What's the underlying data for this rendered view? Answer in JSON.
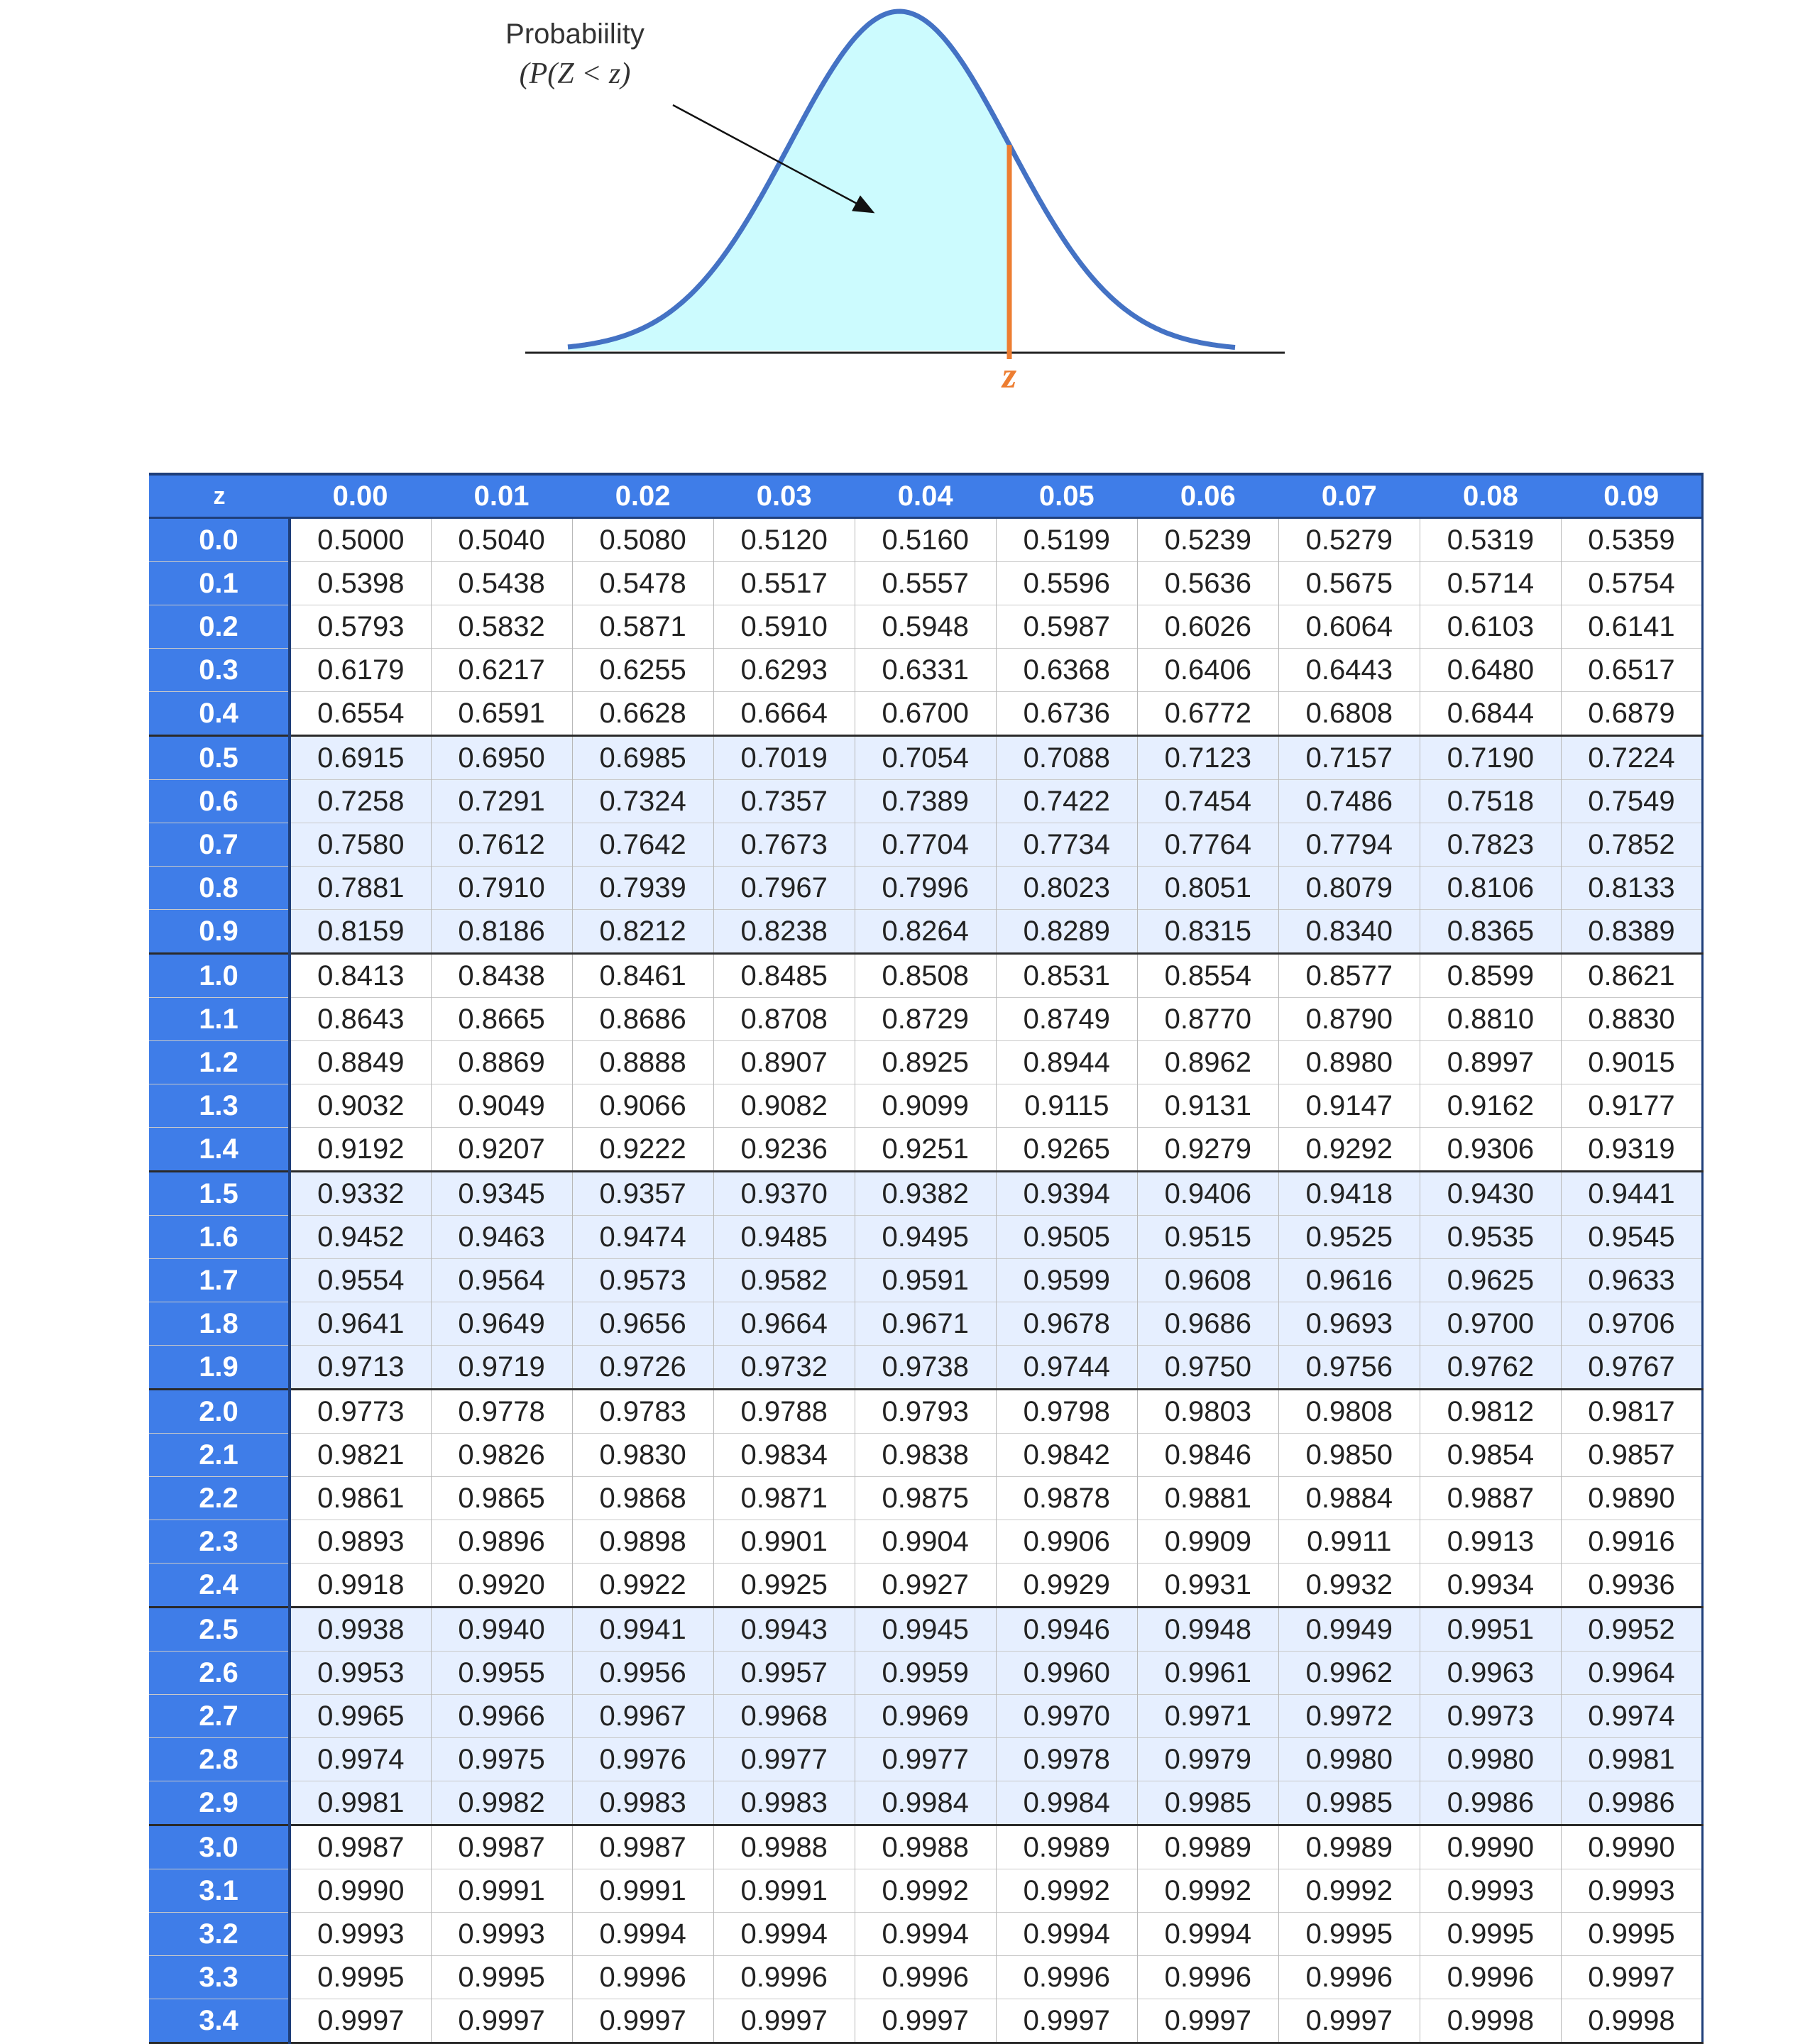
{
  "figure": {
    "probability_label": "Probabiility",
    "formula_label": "(P(Z < z)",
    "z_marker": "z",
    "colors": {
      "curve": "#4472c4",
      "shaded_area": "#ccfbfe",
      "z_line": "#ed7d31",
      "axis": "#222222"
    }
  },
  "table": {
    "corner_label": "z",
    "column_headers": [
      "0.00",
      "0.01",
      "0.02",
      "0.03",
      "0.04",
      "0.05",
      "0.06",
      "0.07",
      "0.08",
      "0.09"
    ],
    "colors": {
      "header_bg": "#3f7de8",
      "header_text": "#ffffff",
      "shaded_band": "#e6efff"
    },
    "rows": [
      {
        "z": "0.0",
        "values": [
          "0.5000",
          "0.5040",
          "0.5080",
          "0.5120",
          "0.5160",
          "0.5199",
          "0.5239",
          "0.5279",
          "0.5319",
          "0.5359"
        ]
      },
      {
        "z": "0.1",
        "values": [
          "0.5398",
          "0.5438",
          "0.5478",
          "0.5517",
          "0.5557",
          "0.5596",
          "0.5636",
          "0.5675",
          "0.5714",
          "0.5754"
        ]
      },
      {
        "z": "0.2",
        "values": [
          "0.5793",
          "0.5832",
          "0.5871",
          "0.5910",
          "0.5948",
          "0.5987",
          "0.6026",
          "0.6064",
          "0.6103",
          "0.6141"
        ]
      },
      {
        "z": "0.3",
        "values": [
          "0.6179",
          "0.6217",
          "0.6255",
          "0.6293",
          "0.6331",
          "0.6368",
          "0.6406",
          "0.6443",
          "0.6480",
          "0.6517"
        ]
      },
      {
        "z": "0.4",
        "values": [
          "0.6554",
          "0.6591",
          "0.6628",
          "0.6664",
          "0.6700",
          "0.6736",
          "0.6772",
          "0.6808",
          "0.6844",
          "0.6879"
        ]
      },
      {
        "z": "0.5",
        "values": [
          "0.6915",
          "0.6950",
          "0.6985",
          "0.7019",
          "0.7054",
          "0.7088",
          "0.7123",
          "0.7157",
          "0.7190",
          "0.7224"
        ]
      },
      {
        "z": "0.6",
        "values": [
          "0.7258",
          "0.7291",
          "0.7324",
          "0.7357",
          "0.7389",
          "0.7422",
          "0.7454",
          "0.7486",
          "0.7518",
          "0.7549"
        ]
      },
      {
        "z": "0.7",
        "values": [
          "0.7580",
          "0.7612",
          "0.7642",
          "0.7673",
          "0.7704",
          "0.7734",
          "0.7764",
          "0.7794",
          "0.7823",
          "0.7852"
        ]
      },
      {
        "z": "0.8",
        "values": [
          "0.7881",
          "0.7910",
          "0.7939",
          "0.7967",
          "0.7996",
          "0.8023",
          "0.8051",
          "0.8079",
          "0.8106",
          "0.8133"
        ]
      },
      {
        "z": "0.9",
        "values": [
          "0.8159",
          "0.8186",
          "0.8212",
          "0.8238",
          "0.8264",
          "0.8289",
          "0.8315",
          "0.8340",
          "0.8365",
          "0.8389"
        ]
      },
      {
        "z": "1.0",
        "values": [
          "0.8413",
          "0.8438",
          "0.8461",
          "0.8485",
          "0.8508",
          "0.8531",
          "0.8554",
          "0.8577",
          "0.8599",
          "0.8621"
        ]
      },
      {
        "z": "1.1",
        "values": [
          "0.8643",
          "0.8665",
          "0.8686",
          "0.8708",
          "0.8729",
          "0.8749",
          "0.8770",
          "0.8790",
          "0.8810",
          "0.8830"
        ]
      },
      {
        "z": "1.2",
        "values": [
          "0.8849",
          "0.8869",
          "0.8888",
          "0.8907",
          "0.8925",
          "0.8944",
          "0.8962",
          "0.8980",
          "0.8997",
          "0.9015"
        ]
      },
      {
        "z": "1.3",
        "values": [
          "0.9032",
          "0.9049",
          "0.9066",
          "0.9082",
          "0.9099",
          "0.9115",
          "0.9131",
          "0.9147",
          "0.9162",
          "0.9177"
        ]
      },
      {
        "z": "1.4",
        "values": [
          "0.9192",
          "0.9207",
          "0.9222",
          "0.9236",
          "0.9251",
          "0.9265",
          "0.9279",
          "0.9292",
          "0.9306",
          "0.9319"
        ]
      },
      {
        "z": "1.5",
        "values": [
          "0.9332",
          "0.9345",
          "0.9357",
          "0.9370",
          "0.9382",
          "0.9394",
          "0.9406",
          "0.9418",
          "0.9430",
          "0.9441"
        ]
      },
      {
        "z": "1.6",
        "values": [
          "0.9452",
          "0.9463",
          "0.9474",
          "0.9485",
          "0.9495",
          "0.9505",
          "0.9515",
          "0.9525",
          "0.9535",
          "0.9545"
        ]
      },
      {
        "z": "1.7",
        "values": [
          "0.9554",
          "0.9564",
          "0.9573",
          "0.9582",
          "0.9591",
          "0.9599",
          "0.9608",
          "0.9616",
          "0.9625",
          "0.9633"
        ]
      },
      {
        "z": "1.8",
        "values": [
          "0.9641",
          "0.9649",
          "0.9656",
          "0.9664",
          "0.9671",
          "0.9678",
          "0.9686",
          "0.9693",
          "0.9700",
          "0.9706"
        ]
      },
      {
        "z": "1.9",
        "values": [
          "0.9713",
          "0.9719",
          "0.9726",
          "0.9732",
          "0.9738",
          "0.9744",
          "0.9750",
          "0.9756",
          "0.9762",
          "0.9767"
        ]
      },
      {
        "z": "2.0",
        "values": [
          "0.9773",
          "0.9778",
          "0.9783",
          "0.9788",
          "0.9793",
          "0.9798",
          "0.9803",
          "0.9808",
          "0.9812",
          "0.9817"
        ]
      },
      {
        "z": "2.1",
        "values": [
          "0.9821",
          "0.9826",
          "0.9830",
          "0.9834",
          "0.9838",
          "0.9842",
          "0.9846",
          "0.9850",
          "0.9854",
          "0.9857"
        ]
      },
      {
        "z": "2.2",
        "values": [
          "0.9861",
          "0.9865",
          "0.9868",
          "0.9871",
          "0.9875",
          "0.9878",
          "0.9881",
          "0.9884",
          "0.9887",
          "0.9890"
        ]
      },
      {
        "z": "2.3",
        "values": [
          "0.9893",
          "0.9896",
          "0.9898",
          "0.9901",
          "0.9904",
          "0.9906",
          "0.9909",
          "0.9911",
          "0.9913",
          "0.9916"
        ]
      },
      {
        "z": "2.4",
        "values": [
          "0.9918",
          "0.9920",
          "0.9922",
          "0.9925",
          "0.9927",
          "0.9929",
          "0.9931",
          "0.9932",
          "0.9934",
          "0.9936"
        ]
      },
      {
        "z": "2.5",
        "values": [
          "0.9938",
          "0.9940",
          "0.9941",
          "0.9943",
          "0.9945",
          "0.9946",
          "0.9948",
          "0.9949",
          "0.9951",
          "0.9952"
        ]
      },
      {
        "z": "2.6",
        "values": [
          "0.9953",
          "0.9955",
          "0.9956",
          "0.9957",
          "0.9959",
          "0.9960",
          "0.9961",
          "0.9962",
          "0.9963",
          "0.9964"
        ]
      },
      {
        "z": "2.7",
        "values": [
          "0.9965",
          "0.9966",
          "0.9967",
          "0.9968",
          "0.9969",
          "0.9970",
          "0.9971",
          "0.9972",
          "0.9973",
          "0.9974"
        ]
      },
      {
        "z": "2.8",
        "values": [
          "0.9974",
          "0.9975",
          "0.9976",
          "0.9977",
          "0.9977",
          "0.9978",
          "0.9979",
          "0.9980",
          "0.9980",
          "0.9981"
        ]
      },
      {
        "z": "2.9",
        "values": [
          "0.9981",
          "0.9982",
          "0.9983",
          "0.9983",
          "0.9984",
          "0.9984",
          "0.9985",
          "0.9985",
          "0.9986",
          "0.9986"
        ]
      },
      {
        "z": "3.0",
        "values": [
          "0.9987",
          "0.9987",
          "0.9987",
          "0.9988",
          "0.9988",
          "0.9989",
          "0.9989",
          "0.9989",
          "0.9990",
          "0.9990"
        ]
      },
      {
        "z": "3.1",
        "values": [
          "0.9990",
          "0.9991",
          "0.9991",
          "0.9991",
          "0.9992",
          "0.9992",
          "0.9992",
          "0.9992",
          "0.9993",
          "0.9993"
        ]
      },
      {
        "z": "3.2",
        "values": [
          "0.9993",
          "0.9993",
          "0.9994",
          "0.9994",
          "0.9994",
          "0.9994",
          "0.9994",
          "0.9995",
          "0.9995",
          "0.9995"
        ]
      },
      {
        "z": "3.3",
        "values": [
          "0.9995",
          "0.9995",
          "0.9996",
          "0.9996",
          "0.9996",
          "0.9996",
          "0.9996",
          "0.9996",
          "0.9996",
          "0.9997"
        ]
      },
      {
        "z": "3.4",
        "values": [
          "0.9997",
          "0.9997",
          "0.9997",
          "0.9997",
          "0.9997",
          "0.9997",
          "0.9997",
          "0.9997",
          "0.9998",
          "0.9998"
        ]
      }
    ]
  }
}
